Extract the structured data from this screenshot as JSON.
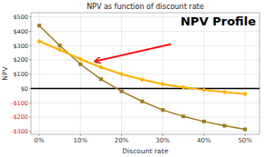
{
  "chart_data": {
    "type": "line",
    "title": "NPV as function of discount rate",
    "x_label": "Discount rate",
    "y_label": "NPV",
    "annotation": "NPV Profile",
    "x": [
      0,
      0.05,
      0.1,
      0.15,
      0.2,
      0.25,
      0.3,
      0.35,
      0.4,
      0.45,
      0.5
    ],
    "series": [
      {
        "color": "#9B7B1A",
        "marker": "square",
        "values": [
          440,
          300,
          170,
          65,
          -20,
          -90,
          -150,
          -195,
          -230,
          -260,
          -285
        ]
      },
      {
        "color": "#FFB300",
        "marker": "diamond",
        "values": [
          330,
          270,
          205,
          148,
          100,
          62,
          30,
          8,
          -10,
          -25,
          -38
        ]
      }
    ],
    "arrow": {
      "x": [
        0.32,
        0.135
      ],
      "y": [
        310,
        190
      ],
      "color": "#ff0000"
    },
    "xlim": [
      -0.02,
      0.535
    ],
    "xticks": [
      {
        "value": 0,
        "label": "0%"
      },
      {
        "value": 0.1,
        "label": "10%"
      },
      {
        "value": 0.2,
        "label": "20%"
      },
      {
        "value": 0.3,
        "label": "30%"
      },
      {
        "value": 0.4,
        "label": "40%"
      },
      {
        "value": 0.5,
        "label": "50%"
      }
    ],
    "ylim": [
      -320,
      530
    ],
    "yticks": [
      {
        "value": -300,
        "label": "-$300"
      },
      {
        "value": -200,
        "label": "-$200"
      },
      {
        "value": -100,
        "label": "-$100"
      },
      {
        "value": 0,
        "label": "$0"
      },
      {
        "value": 100,
        "label": "$100"
      },
      {
        "value": 200,
        "label": "$200"
      },
      {
        "value": 300,
        "label": "$300"
      },
      {
        "value": 400,
        "label": "$400"
      },
      {
        "value": 500,
        "label": "$500"
      }
    ],
    "grid": true
  }
}
